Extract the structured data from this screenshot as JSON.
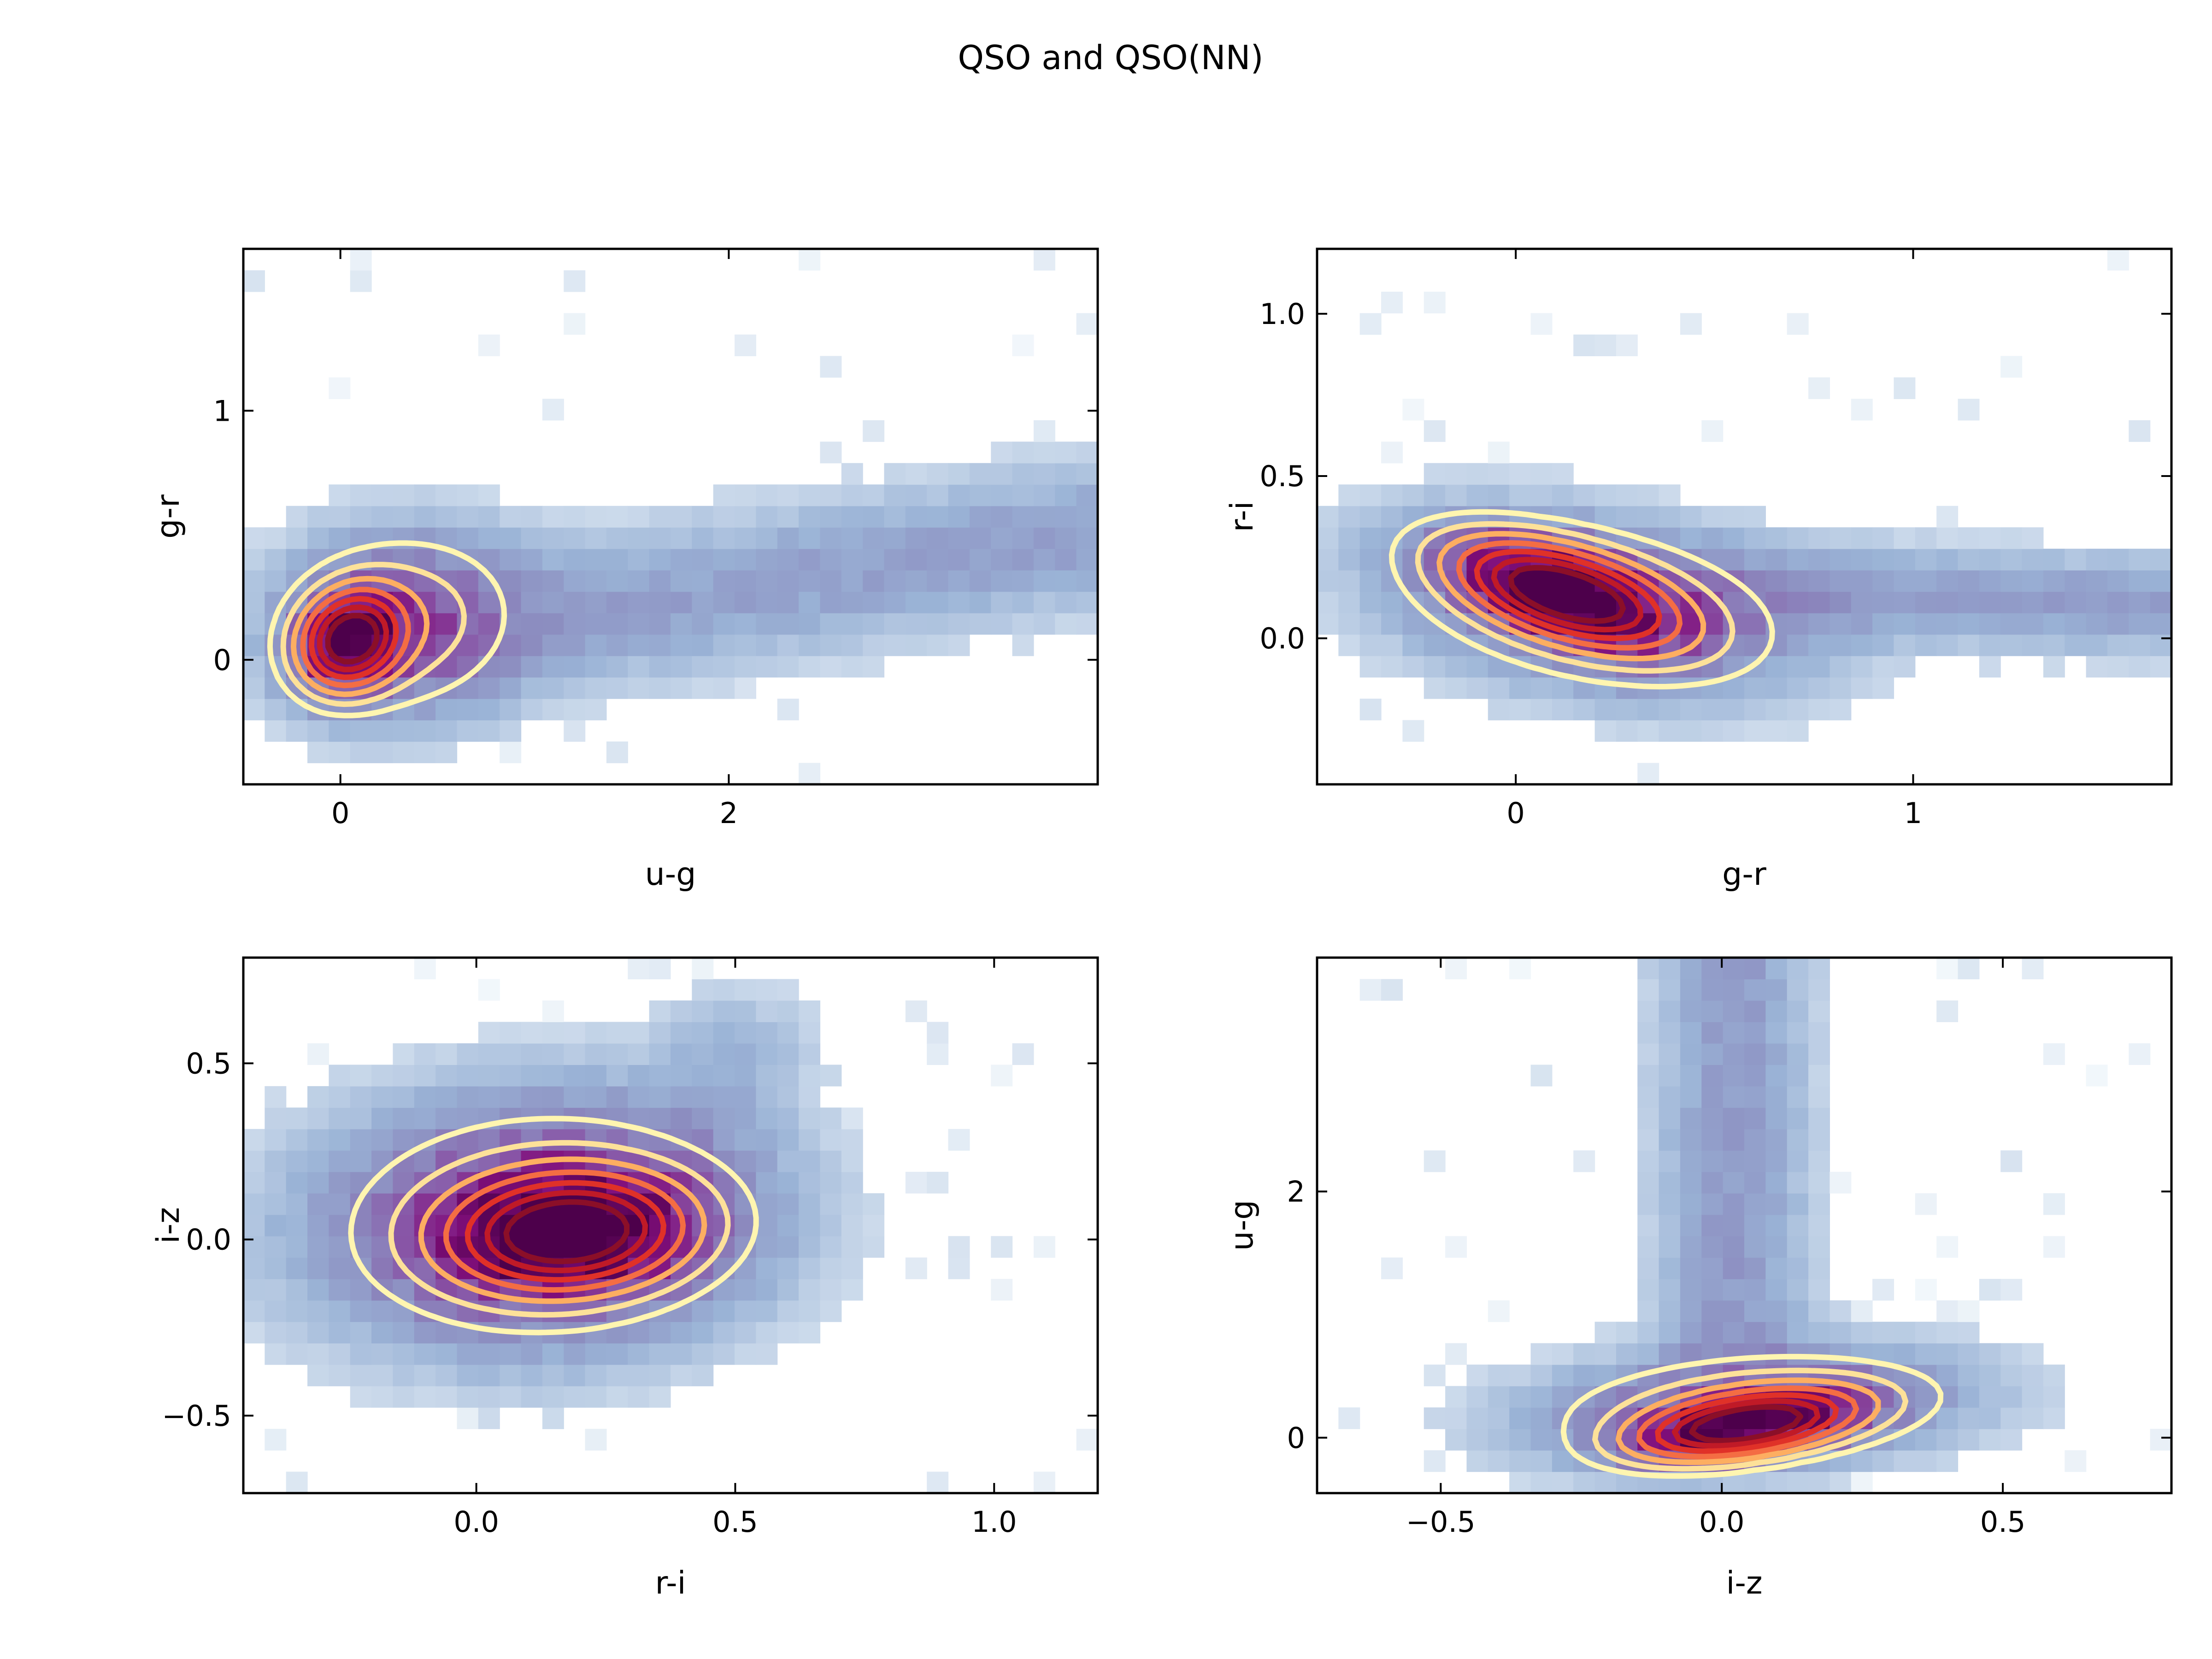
{
  "figure": {
    "title": "QSO and QSO(NN)"
  },
  "chart_data": [
    {
      "type": "heatmap",
      "xlabel": "u-g",
      "ylabel": "g-r",
      "xlim": [
        -0.5,
        3.9
      ],
      "ylim": [
        -0.5,
        1.65
      ],
      "xticks": [
        {
          "v": 0,
          "label": "0"
        },
        {
          "v": 2,
          "label": "2"
        }
      ],
      "yticks": [
        {
          "v": 0,
          "label": "0"
        },
        {
          "v": 1,
          "label": "1"
        }
      ],
      "core": {
        "x": 0.05,
        "y": 0.08,
        "sx": 0.16,
        "sy": 0.12,
        "rho": 0.15
      },
      "halo": {
        "x": 0.3,
        "y": 0.15,
        "sx": 0.38,
        "sy": 0.22,
        "rho": 0.1,
        "w": 0.35
      },
      "tail": {
        "x0": 0.6,
        "y0": 0.1,
        "x1": 3.8,
        "y1": 0.5,
        "width": 0.18,
        "w": 0.12
      },
      "noise": 0.05,
      "contour_levels": [
        0.92,
        0.75,
        0.58,
        0.42,
        0.28,
        0.17,
        0.09
      ],
      "grid": false
    },
    {
      "type": "heatmap",
      "xlabel": "g-r",
      "ylabel": "r-i",
      "xlim": [
        -0.5,
        1.65
      ],
      "ylim": [
        -0.45,
        1.2
      ],
      "xticks": [
        {
          "v": 0,
          "label": "0"
        },
        {
          "v": 1,
          "label": "1"
        }
      ],
      "yticks": [
        {
          "v": 0.0,
          "label": "0.0"
        },
        {
          "v": 0.5,
          "label": "0.5"
        },
        {
          "v": 1.0,
          "label": "1.0"
        }
      ],
      "core": {
        "x": 0.12,
        "y": 0.14,
        "sx": 0.17,
        "sy": 0.1,
        "rho": -0.55
      },
      "halo": {
        "x": 0.2,
        "y": 0.1,
        "sx": 0.3,
        "sy": 0.16,
        "rho": -0.3,
        "w": 0.35
      },
      "tail": {
        "x0": 0.5,
        "y0": 0.15,
        "x1": 1.62,
        "y1": 0.1,
        "width": 0.09,
        "w": 0.13
      },
      "noise": 0.05,
      "contour_levels": [
        0.92,
        0.75,
        0.58,
        0.42,
        0.28,
        0.17,
        0.09
      ],
      "grid": false
    },
    {
      "type": "heatmap",
      "xlabel": "r-i",
      "ylabel": "i-z",
      "xlim": [
        -0.45,
        1.2
      ],
      "ylim": [
        -0.72,
        0.8
      ],
      "xticks": [
        {
          "v": 0.0,
          "label": "0.0"
        },
        {
          "v": 0.5,
          "label": "0.5"
        },
        {
          "v": 1.0,
          "label": "1.0"
        }
      ],
      "yticks": [
        {
          "v": -0.5,
          "label": "−0.5"
        },
        {
          "v": 0.0,
          "label": "0.0"
        },
        {
          "v": 0.5,
          "label": "0.5"
        }
      ],
      "core": {
        "x": 0.18,
        "y": 0.02,
        "sx": 0.14,
        "sy": 0.1,
        "rho": 0.1
      },
      "halo": {
        "x": 0.12,
        "y": 0.05,
        "sx": 0.24,
        "sy": 0.2,
        "rho": 0.05,
        "w": 0.55
      },
      "tail": {
        "x0": 0.4,
        "y0": 0.25,
        "x1": 0.5,
        "y1": 0.55,
        "width": 0.1,
        "w": 0.06
      },
      "noise": 0.06,
      "contour_levels": [
        0.92,
        0.75,
        0.58,
        0.42,
        0.28,
        0.17,
        0.09
      ],
      "grid": false
    },
    {
      "type": "heatmap",
      "xlabel": "i-z",
      "ylabel": "u-g",
      "xlim": [
        -0.72,
        0.8
      ],
      "ylim": [
        -0.45,
        3.9
      ],
      "xticks": [
        {
          "v": -0.5,
          "label": "−0.5"
        },
        {
          "v": 0.0,
          "label": "0.0"
        },
        {
          "v": 0.5,
          "label": "0.5"
        }
      ],
      "yticks": [
        {
          "v": 0,
          "label": "0"
        },
        {
          "v": 2,
          "label": "2"
        }
      ],
      "core": {
        "x": 0.04,
        "y": 0.1,
        "sx": 0.12,
        "sy": 0.17,
        "rho": 0.45
      },
      "halo": {
        "x": 0.05,
        "y": 0.25,
        "sx": 0.22,
        "sy": 0.28,
        "rho": 0.2,
        "w": 0.35
      },
      "tail": {
        "x0": 0.02,
        "y0": 0.6,
        "x1": 0.02,
        "y1": 3.9,
        "width": 0.08,
        "w": 0.14
      },
      "noise": 0.05,
      "contour_levels": [
        0.92,
        0.75,
        0.58,
        0.42,
        0.28,
        0.17,
        0.09
      ],
      "grid": false
    }
  ],
  "colors": {
    "hist_colormap": [
      "#f7fbfd",
      "#c9d8ea",
      "#9ab3d6",
      "#8c8dc0",
      "#8856a7",
      "#810f7c",
      "#4d004b"
    ],
    "contour_colormap": [
      "#fff5b0",
      "#fde199",
      "#fdae61",
      "#f46d43",
      "#e03128",
      "#c01a27",
      "#8b0f28"
    ],
    "axes": "#000000"
  }
}
